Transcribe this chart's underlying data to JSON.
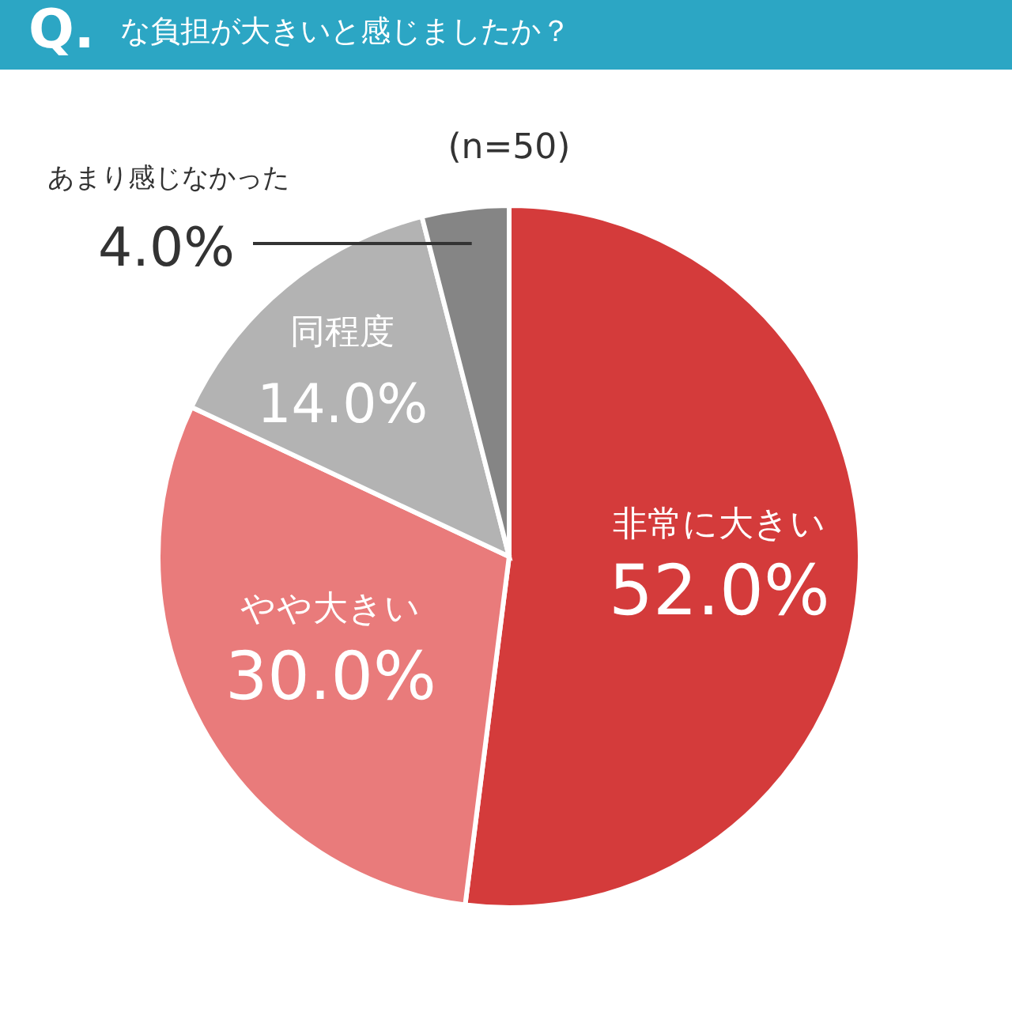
{
  "chart_data": {
    "type": "pie",
    "title": "な負担が大きいと感じましたか？",
    "annotations": [
      "Q.",
      "(n=50)"
    ],
    "categories": [
      "非常に大きい",
      "やや大きい",
      "同程度",
      "あまり感じなかった"
    ],
    "values": [
      52,
      30,
      14,
      4
    ],
    "value_labels": [
      "52.0%",
      "30.0%",
      "14.0%",
      "4.0%"
    ],
    "colors": [
      "#d43b3b",
      "#e97b7b",
      "#b3b3b3",
      "#858585"
    ]
  }
}
